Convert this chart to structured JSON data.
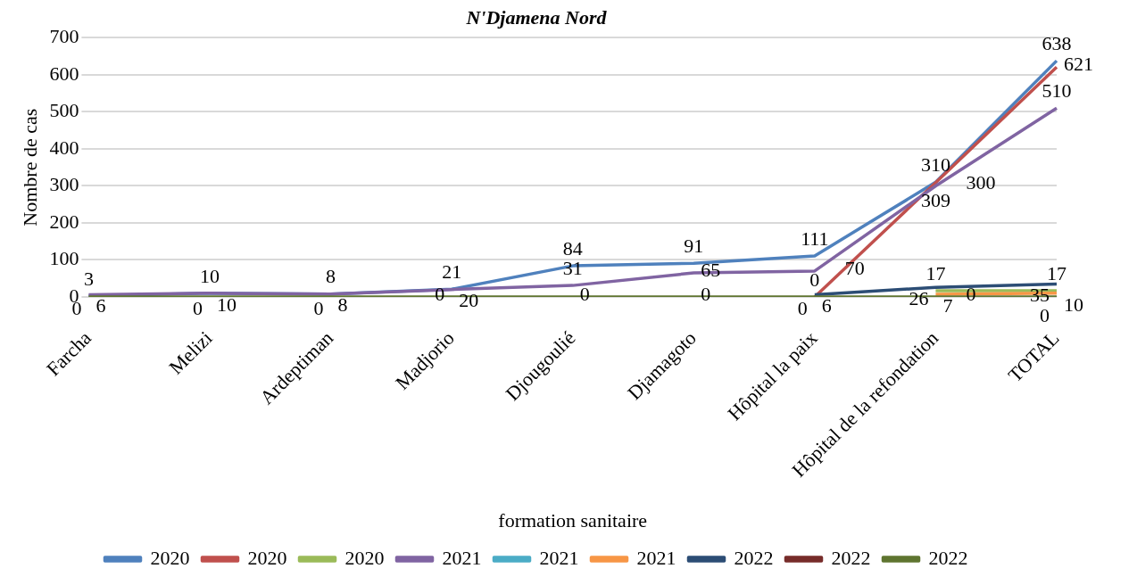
{
  "chart_data": {
    "type": "line",
    "title": "N'Djamena Nord",
    "xlabel": "formation sanitaire",
    "ylabel": "Nombre de cas",
    "categories": [
      "Farcha",
      "Melizi",
      "Ardeptiman",
      "Madjorio",
      "Djougoulié",
      "Djamagoto",
      "Hôpital la paix",
      "Hôpital de la refondation",
      "TOTAL"
    ],
    "series": [
      {
        "name": "2020",
        "color": "#4f81bd",
        "values": [
          3,
          10,
          8,
          21,
          84,
          91,
          111,
          310,
          638
        ]
      },
      {
        "name": "2020",
        "color": "#c0504d",
        "values": [
          null,
          null,
          null,
          null,
          null,
          null,
          0,
          309,
          621
        ]
      },
      {
        "name": "2020",
        "color": "#9bbb59",
        "values": [
          null,
          null,
          null,
          null,
          null,
          null,
          null,
          17,
          17
        ]
      },
      {
        "name": "2021",
        "color": "#8064a2",
        "values": [
          6,
          10,
          8,
          20,
          31,
          65,
          70,
          300,
          510
        ]
      },
      {
        "name": "2021",
        "color": "#4bacc6",
        "values": [
          null,
          null,
          null,
          null,
          null,
          null,
          null,
          null,
          null
        ]
      },
      {
        "name": "2021",
        "color": "#f79646",
        "values": [
          null,
          null,
          null,
          null,
          null,
          null,
          null,
          7,
          10
        ]
      },
      {
        "name": "2022",
        "color": "#2c4d75",
        "values": [
          null,
          null,
          null,
          null,
          null,
          null,
          6,
          26,
          35
        ]
      },
      {
        "name": "2022",
        "color": "#772c2a",
        "values": [
          null,
          null,
          null,
          null,
          null,
          null,
          null,
          null,
          null
        ]
      },
      {
        "name": "2022",
        "color": "#5f7530",
        "values": [
          0,
          0,
          0,
          0,
          0,
          0,
          0,
          0,
          0
        ]
      }
    ],
    "ylim": [
      0,
      700
    ],
    "yticks": [
      0,
      100,
      200,
      300,
      400,
      500,
      600,
      700
    ],
    "grid": "y",
    "legend": "bottom",
    "data_labels": true,
    "marker": "none",
    "line_style": "solid"
  }
}
